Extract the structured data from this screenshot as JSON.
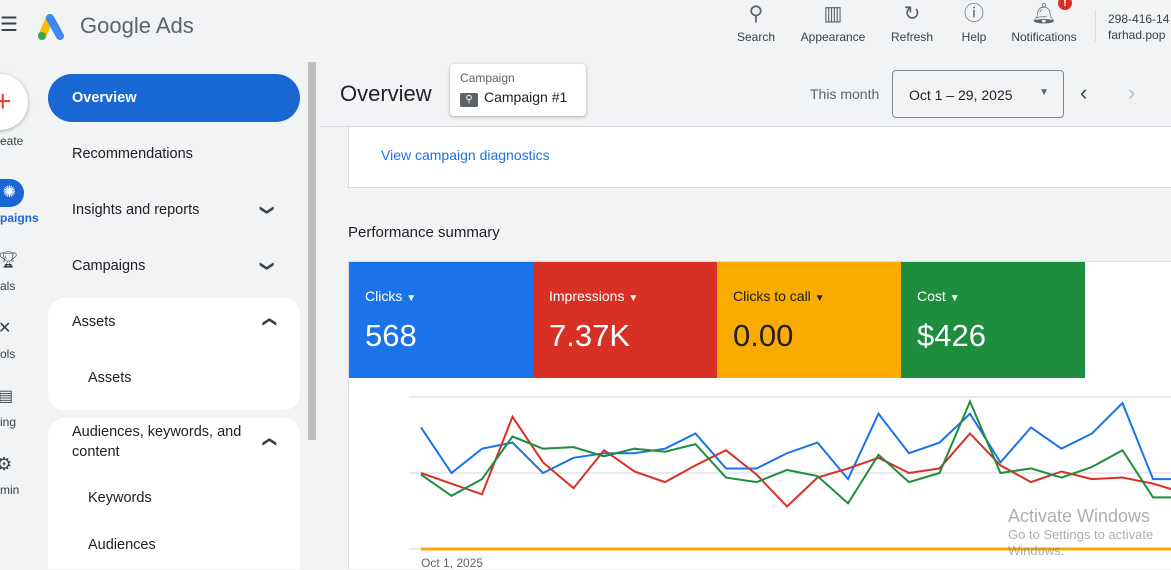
{
  "header": {
    "app_name": "Google Ads",
    "actions": [
      {
        "label": "Search",
        "icon": "search-icon"
      },
      {
        "label": "Appearance",
        "icon": "appearance-icon"
      },
      {
        "label": "Refresh",
        "icon": "refresh-icon"
      },
      {
        "label": "Help",
        "icon": "help-icon"
      },
      {
        "label": "Notifications",
        "icon": "bell-icon",
        "badge": "!"
      }
    ],
    "account_id": "298-416-14",
    "account_email": "farhad.pop"
  },
  "rail": {
    "items": [
      "eate",
      "paigns",
      "als",
      "ols",
      "ing",
      "min"
    ]
  },
  "sidebar": {
    "items": [
      {
        "label": "Overview",
        "active": true
      },
      {
        "label": "Recommendations"
      },
      {
        "label": "Insights and reports"
      },
      {
        "label": "Campaigns"
      },
      {
        "label": "Assets"
      },
      {
        "label": "Assets"
      },
      {
        "label": "Audiences, keywords, and content"
      },
      {
        "label": "Keywords"
      },
      {
        "label": "Audiences"
      }
    ]
  },
  "main": {
    "title": "Overview",
    "campaign_label": "Campaign",
    "campaign_value": "Campaign #1",
    "range_label": "This month",
    "date_range": "Oct 1 – 29, 2025",
    "diagnostics_link": "View campaign diagnostics",
    "perf_title": "Performance summary",
    "metrics": [
      {
        "label": "Clicks",
        "value": "568",
        "color": "#1a73e8"
      },
      {
        "label": "Impressions",
        "value": "7.37K",
        "color": "#d93025"
      },
      {
        "label": "Clicks to call",
        "value": "0.00",
        "color": "#f9ab00"
      },
      {
        "label": "Cost",
        "value": "$426",
        "color": "#1e8e3e"
      }
    ]
  },
  "chart_data": {
    "type": "line",
    "x_start_label": "Oct 1, 2025",
    "grid": true,
    "series": [
      {
        "color": "#1a73e8",
        "values": [
          80,
          50,
          66,
          70,
          50,
          60,
          63,
          63,
          66,
          76,
          53,
          53,
          63,
          70,
          46,
          89,
          63,
          70,
          89,
          57,
          80,
          66,
          76,
          96,
          46,
          46
        ]
      },
      {
        "color": "#d93025",
        "values": [
          50,
          43,
          36,
          87,
          57,
          40,
          65,
          51,
          44,
          55,
          65,
          49,
          28,
          47,
          53,
          60,
          50,
          53,
          76,
          55,
          44,
          51,
          46,
          47,
          43,
          37
        ]
      },
      {
        "color": "#1e8e3e",
        "values": [
          49,
          35,
          46,
          74,
          66,
          67,
          61,
          66,
          64,
          69,
          47,
          44,
          52,
          48,
          30,
          62,
          44,
          50,
          97,
          50,
          53,
          47,
          54,
          65,
          34,
          34
        ]
      },
      {
        "color": "#f9ab00",
        "values": [
          0,
          0,
          0,
          0,
          0,
          0,
          0,
          0,
          0,
          0,
          0,
          0,
          0,
          0,
          0,
          0,
          0,
          0,
          0,
          0,
          0,
          0,
          0,
          0,
          0,
          0
        ]
      }
    ]
  },
  "watermark": {
    "line1": "Activate Windows",
    "line2": "Go to Settings to activate Windows."
  }
}
